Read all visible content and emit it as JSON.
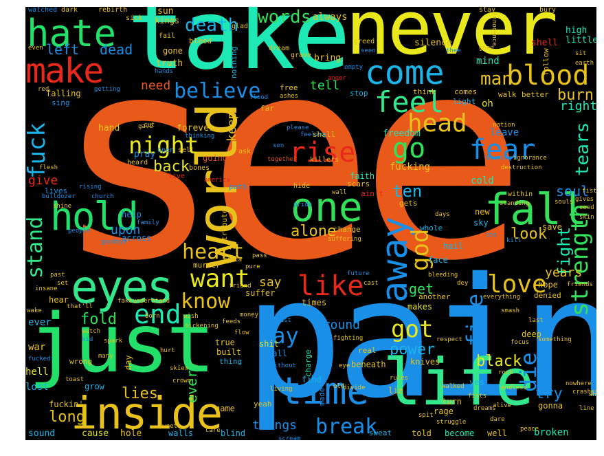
{
  "words": [
    {
      "text": "see",
      "color": "#e8591a"
    },
    {
      "text": "pain",
      "color": "#1a8fe8"
    },
    {
      "text": "take",
      "color": "#1ee8b4"
    },
    {
      "text": "never",
      "color": "#e8e81a"
    },
    {
      "text": "just",
      "color": "#22e06a"
    },
    {
      "text": "life",
      "color": "#33e88c"
    },
    {
      "text": "inside",
      "color": "#e8c21a"
    },
    {
      "text": "hate",
      "color": "#22e06a"
    },
    {
      "text": "make",
      "color": "#e8281a"
    },
    {
      "text": "world",
      "color": "#e8c21a"
    },
    {
      "text": "hold",
      "color": "#22e06a"
    },
    {
      "text": "eyes",
      "color": "#33e88c"
    },
    {
      "text": "one",
      "color": "#33e05a"
    },
    {
      "text": "fall",
      "color": "#33e05a"
    },
    {
      "text": "away",
      "color": "#1a8fe8"
    },
    {
      "text": "time",
      "color": "#1a8fe8"
    },
    {
      "text": "come",
      "color": "#1ab4e8"
    },
    {
      "text": "blood",
      "color": "#e8c21a"
    },
    {
      "text": "feel",
      "color": "#33e88c"
    },
    {
      "text": "fear",
      "color": "#1a8fe8"
    },
    {
      "text": "strength",
      "color": "#33e05a"
    },
    {
      "text": "night",
      "color": "#e8e81a"
    },
    {
      "text": "rise",
      "color": "#e8281a"
    },
    {
      "text": "go",
      "color": "#33e05a"
    },
    {
      "text": "head",
      "color": "#e8c21a"
    },
    {
      "text": "end",
      "color": "#1ee8b4"
    },
    {
      "text": "want",
      "color": "#e8e81a"
    },
    {
      "text": "know",
      "color": "#e8c21a"
    },
    {
      "text": "like",
      "color": "#e8281a"
    },
    {
      "text": "love",
      "color": "#e8c21a"
    },
    {
      "text": "god",
      "color": "#e8c21a"
    },
    {
      "text": "fire",
      "color": "#1a8fe8"
    },
    {
      "text": "die",
      "color": "#1a8fe8"
    },
    {
      "text": "got",
      "color": "#e8e81a"
    },
    {
      "text": "way",
      "color": "#1a8fe8"
    },
    {
      "text": "heart",
      "color": "#e8c21a"
    },
    {
      "text": "break",
      "color": "#1a8fe8"
    },
    {
      "text": "fuck",
      "color": "#1ab4e8"
    },
    {
      "text": "stand",
      "color": "#33e88c"
    },
    {
      "text": "death",
      "color": "#1ab4e8"
    },
    {
      "text": "believe",
      "color": "#1a8fe8"
    },
    {
      "text": "words",
      "color": "#33e05a"
    },
    {
      "text": "fight",
      "color": "#1ee8b4"
    },
    {
      "text": "tears",
      "color": "#1ee8b4"
    },
    {
      "text": "man",
      "color": "#e8c21a"
    },
    {
      "text": "burn",
      "color": "#e8c21a"
    },
    {
      "text": "right",
      "color": "#1ee8b4"
    },
    {
      "text": "soul",
      "color": "#1a8fe8"
    },
    {
      "text": "ten",
      "color": "#1ab4e8"
    },
    {
      "text": "alone",
      "color": "#e8c21a"
    },
    {
      "text": "look",
      "color": "#e8c21a"
    },
    {
      "text": "back",
      "color": "#e8e81a"
    },
    {
      "text": "dead",
      "color": "#1a8fe8"
    },
    {
      "text": "left",
      "color": "#1a8fe8"
    },
    {
      "text": "fold",
      "color": "#33e05a"
    },
    {
      "text": "power",
      "color": "#1ab4e8"
    },
    {
      "text": "black",
      "color": "#e8e81a"
    },
    {
      "text": "try",
      "color": "#1a8fe8"
    },
    {
      "text": "long",
      "color": "#e8c21a"
    },
    {
      "text": "lies",
      "color": "#e8c21a"
    },
    {
      "text": "every",
      "color": "#33e05a"
    },
    {
      "text": "things",
      "color": "#1a8fe8"
    },
    {
      "text": "say",
      "color": "#e8c21a"
    },
    {
      "text": "get",
      "color": "#33e05a"
    },
    {
      "text": "years",
      "color": "#e8c21a"
    },
    {
      "text": "around",
      "color": "#1a8fe8"
    },
    {
      "text": "give",
      "color": "#e8281a"
    },
    {
      "text": "upon",
      "color": "#1a8fe8"
    },
    {
      "text": "keep",
      "color": "#e8c21a"
    },
    {
      "text": "tell",
      "color": "#33e05a"
    },
    {
      "text": "need",
      "color": "#e8591a"
    },
    {
      "text": "always",
      "color": "#e8c21a"
    },
    {
      "text": "sun",
      "color": "#e8c21a"
    },
    {
      "text": "kings",
      "color": "#e8c21a"
    },
    {
      "text": "truth",
      "color": "#e8c21a"
    },
    {
      "text": "gone",
      "color": "#e8c21a"
    },
    {
      "text": "bleed",
      "color": "#e8c21a"
    },
    {
      "text": "forever",
      "color": "#e8c21a"
    },
    {
      "text": "hand",
      "color": "#e8c21a"
    },
    {
      "text": "pray",
      "color": "#1a8fe8"
    },
    {
      "text": "going",
      "color": "#e8591a"
    },
    {
      "text": "faith",
      "color": "#1ee8b4"
    },
    {
      "text": "fucking",
      "color": "#e8c21a"
    },
    {
      "text": "freedom",
      "color": "#1ee8b4"
    },
    {
      "text": "cold",
      "color": "#1ee8b4"
    },
    {
      "text": "leave",
      "color": "#1a8fe8"
    },
    {
      "text": "mind",
      "color": "#1ee8b4"
    },
    {
      "text": "high",
      "color": "#1ee8b4"
    },
    {
      "text": "little",
      "color": "#1ee8b4"
    },
    {
      "text": "silence",
      "color": "#e8c21a"
    },
    {
      "text": "shell",
      "color": "#e8281a"
    },
    {
      "text": "bring",
      "color": "#e8c21a"
    },
    {
      "text": "oh",
      "color": "#e8e81a"
    },
    {
      "text": "hell",
      "color": "#e8e81a"
    },
    {
      "text": "lost",
      "color": "#1ab4e8"
    },
    {
      "text": "war",
      "color": "#e8c21a"
    },
    {
      "text": "ever",
      "color": "#1ab4e8"
    },
    {
      "text": "sound",
      "color": "#1ab4e8"
    },
    {
      "text": "cause",
      "color": "#e8e81a"
    },
    {
      "text": "hole",
      "color": "#e8c21a"
    },
    {
      "text": "walls",
      "color": "#1ab4e8"
    },
    {
      "text": "blind",
      "color": "#1ab4e8"
    },
    {
      "text": "told",
      "color": "#e8c21a"
    },
    {
      "text": "become",
      "color": "#1ee8b4"
    },
    {
      "text": "well",
      "color": "#e8c21a"
    },
    {
      "text": "broken",
      "color": "#1ee8b4"
    },
    {
      "text": "sweat",
      "color": "#1ab4e8"
    },
    {
      "text": "suffer",
      "color": "#e8c21a"
    },
    {
      "text": "makes",
      "color": "#e8e81a"
    },
    {
      "text": "another",
      "color": "#e8c21a"
    },
    {
      "text": "face",
      "color": "#1ab4e8"
    },
    {
      "text": "hope",
      "color": "#e8c21a"
    },
    {
      "text": "denied",
      "color": "#e8c21a"
    },
    {
      "text": "deep",
      "color": "#e8c21a"
    },
    {
      "text": "knives",
      "color": "#e8c21a"
    },
    {
      "text": "gonna",
      "color": "#e8c21a"
    },
    {
      "text": "yes",
      "color": "#1ab4e8"
    },
    {
      "text": "turn",
      "color": "#e8c21a"
    },
    {
      "text": "rage",
      "color": "#e8c21a"
    },
    {
      "text": "shit",
      "color": "#e8e81a"
    },
    {
      "text": "call",
      "color": "#1a8fe8"
    },
    {
      "text": "built",
      "color": "#e8c21a"
    },
    {
      "text": "thing",
      "color": "#1ab4e8"
    },
    {
      "text": "true",
      "color": "#e8c21a"
    },
    {
      "text": "game",
      "color": "#e8c21a"
    },
    {
      "text": "wrong",
      "color": "#e8c21a"
    },
    {
      "text": "grow",
      "color": "#1ab4e8"
    },
    {
      "text": "times",
      "color": "#e8c21a"
    },
    {
      "text": "walk",
      "color": "#e8c21a"
    },
    {
      "text": "free",
      "color": "#e8c21a"
    },
    {
      "text": "far",
      "color": "#e8c21a"
    },
    {
      "text": "new",
      "color": "#e8c21a"
    },
    {
      "text": "sky",
      "color": "#1ab4e8"
    },
    {
      "text": "save",
      "color": "#e8c21a"
    },
    {
      "text": "hail",
      "color": "#1ab4e8"
    },
    {
      "text": "help",
      "color": "#1a8fe8"
    },
    {
      "text": "across",
      "color": "#1a8fe8"
    },
    {
      "text": "falling",
      "color": "#e8c21a"
    },
    {
      "text": "sing",
      "color": "#1a8fe8"
    },
    {
      "text": "lives",
      "color": "#1a8fe8"
    },
    {
      "text": "murder",
      "color": "#e8c21a"
    },
    {
      "text": "comes",
      "color": "#e8c21a"
    },
    {
      "text": "better",
      "color": "#e8c21a"
    },
    {
      "text": "light",
      "color": "#1ab4e8"
    },
    {
      "text": "think",
      "color": "#e8c21a"
    },
    {
      "text": "shall",
      "color": "#e8c21a"
    },
    {
      "text": "scars",
      "color": "#e8c21a"
    },
    {
      "text": "gets",
      "color": "#e8c21a"
    },
    {
      "text": "change",
      "color": "#e8c21a"
    },
    {
      "text": "whole",
      "color": "#1ab4e8"
    },
    {
      "text": "nothing",
      "color": "#1ab4e8"
    },
    {
      "text": "hear",
      "color": "#e8c21a"
    },
    {
      "text": "stop",
      "color": "#1ab4e8"
    },
    {
      "text": "ain't",
      "color": "#e8281a"
    },
    {
      "text": "follow",
      "color": "#e8c21a"
    },
    {
      "text": "tribute",
      "color": "#e8c21a"
    },
    {
      "text": "path",
      "color": "#1a8fe8"
    },
    {
      "text": "beneath",
      "color": "#e8c21a"
    },
    {
      "text": "find",
      "color": "#1ab4e8"
    },
    {
      "text": "real",
      "color": "#e8c21a"
    },
    {
      "text": "made",
      "color": "#1a8fe8"
    },
    {
      "text": "charge",
      "color": "#1ee8b4"
    },
    {
      "text": "yeah",
      "color": "#e8c21a"
    },
    {
      "text": "lie",
      "color": "#e8c21a"
    },
    {
      "text": "fuckin'",
      "color": "#e8c21a"
    },
    {
      "text": "day",
      "color": "#e8c21a"
    },
    {
      "text": "watched",
      "color": "#1a8fe8"
    },
    {
      "text": "dark",
      "color": "#e8c21a"
    },
    {
      "text": "rebirth",
      "color": "#e8c21a"
    },
    {
      "text": "sick",
      "color": "#e8c21a"
    },
    {
      "text": "stay",
      "color": "#e8c21a"
    },
    {
      "text": "bury",
      "color": "#e8c21a"
    },
    {
      "text": "glad",
      "color": "#e8c21a"
    },
    {
      "text": "fail",
      "color": "#e8c21a"
    },
    {
      "text": "greed",
      "color": "#e8c21a"
    },
    {
      "text": "innocence",
      "color": "#e8c21a"
    },
    {
      "text": "even",
      "color": "#e8c21a"
    },
    {
      "text": "dream",
      "color": "#e8c21a"
    },
    {
      "text": "grave",
      "color": "#e8c21a"
    },
    {
      "text": "hands",
      "color": "#1a8fe8"
    },
    {
      "text": "seen",
      "color": "#1a8fe8"
    },
    {
      "text": "thee",
      "color": "#1a8fe8"
    },
    {
      "text": "good",
      "color": "#e8c21a"
    },
    {
      "text": "sit",
      "color": "#e8c21a"
    },
    {
      "text": "earth",
      "color": "#e8c21a"
    },
    {
      "text": "empty",
      "color": "#1a8fe8"
    },
    {
      "text": "anger",
      "color": "#e8281a"
    },
    {
      "text": "red",
      "color": "#e8c21a"
    },
    {
      "text": "getting",
      "color": "#1a8fe8"
    },
    {
      "text": "flood",
      "color": "#1a8fe8"
    },
    {
      "text": "ashes",
      "color": "#e8c21a"
    },
    {
      "text": "nation",
      "color": "#e8c21a"
    },
    {
      "text": "please",
      "color": "#1a8fe8"
    },
    {
      "text": "feeling",
      "color": "#1a8fe8"
    },
    {
      "text": "cut",
      "color": "#e8c21a"
    },
    {
      "text": "gave",
      "color": "#e8c21a"
    },
    {
      "text": "thinking",
      "color": "#1a8fe8"
    },
    {
      "text": "son",
      "color": "#1a8fe8"
    },
    {
      "text": "bones",
      "color": "#e8c21a"
    },
    {
      "text": "ask",
      "color": "#e8c21a"
    },
    {
      "text": "together",
      "color": "#e8591a"
    },
    {
      "text": "killers",
      "color": "#e8c21a"
    },
    {
      "text": "open",
      "color": "#1a8fe8"
    },
    {
      "text": "sell",
      "color": "#e8c21a"
    },
    {
      "text": "burning",
      "color": "#1a8fe8"
    },
    {
      "text": "ignorance",
      "color": "#e8c21a"
    },
    {
      "text": "flesh",
      "color": "#e8c21a"
    },
    {
      "text": "heard",
      "color": "#e8c21a"
    },
    {
      "text": "live",
      "color": "#e8281a"
    },
    {
      "text": "america",
      "color": "#e8281a"
    },
    {
      "text": "rising",
      "color": "#1a8fe8"
    },
    {
      "text": "church",
      "color": "#1a8fe8"
    },
    {
      "text": "bulldozer",
      "color": "#1a8fe8"
    },
    {
      "text": "family",
      "color": "#1a8fe8"
    },
    {
      "text": "people",
      "color": "#1a8fe8"
    },
    {
      "text": "goodbye",
      "color": "#1a8fe8"
    },
    {
      "text": "hide",
      "color": "#e8c21a"
    },
    {
      "text": "wall",
      "color": "#e8c21a"
    },
    {
      "text": "pride",
      "color": "#1a8fe8"
    },
    {
      "text": "days",
      "color": "#e8c21a"
    },
    {
      "text": "within",
      "color": "#e8c21a"
    },
    {
      "text": "fist",
      "color": "#e8c21a"
    },
    {
      "text": "gives",
      "color": "#e8c21a"
    },
    {
      "text": "seed",
      "color": "#e8c21a"
    },
    {
      "text": "souls",
      "color": "#e8c21a"
    },
    {
      "text": "skin",
      "color": "#e8c21a"
    },
    {
      "text": "standing",
      "color": "#e8c21a"
    },
    {
      "text": "cos",
      "color": "#1a8fe8"
    },
    {
      "text": "kill",
      "color": "#1a8fe8"
    },
    {
      "text": "suffering",
      "color": "#e8c21a"
    },
    {
      "text": "pass",
      "color": "#e8c21a"
    },
    {
      "text": "pure",
      "color": "#e8c21a"
    },
    {
      "text": "gotta",
      "color": "#e8c21a"
    },
    {
      "text": "past",
      "color": "#e8c21a"
    },
    {
      "text": "set",
      "color": "#e8c21a"
    },
    {
      "text": "insane",
      "color": "#e8c21a"
    },
    {
      "text": "that'll",
      "color": "#e8c21a"
    },
    {
      "text": "friend",
      "color": "#e8c21a"
    },
    {
      "text": "fake",
      "color": "#e8c21a"
    },
    {
      "text": "understand",
      "color": "#e8c21a"
    },
    {
      "text": "future",
      "color": "#1a8fe8"
    },
    {
      "text": "cast",
      "color": "#e8c21a"
    },
    {
      "text": "bleeding",
      "color": "#e8c21a"
    },
    {
      "text": "dey",
      "color": "#e8c21a"
    },
    {
      "text": "friends",
      "color": "#e8c21a"
    },
    {
      "text": "everything",
      "color": "#e8c21a"
    },
    {
      "text": "wake",
      "color": "#e8c21a"
    },
    {
      "text": "born",
      "color": "#e8c21a"
    },
    {
      "text": "wish",
      "color": "#e8c21a"
    },
    {
      "text": "money",
      "color": "#e8c21a"
    },
    {
      "text": "feeds",
      "color": "#e8c21a"
    },
    {
      "text": "trust",
      "color": "#1a8fe8"
    },
    {
      "text": "smash",
      "color": "#e8c21a"
    },
    {
      "text": "last",
      "color": "#e8c21a"
    },
    {
      "text": "watch",
      "color": "#e8c21a"
    },
    {
      "text": "kid",
      "color": "#1a8fe8"
    },
    {
      "text": "spark",
      "color": "#e8c21a"
    },
    {
      "text": "sickening",
      "color": "#e8c21a"
    },
    {
      "text": "flow",
      "color": "#e8c21a"
    },
    {
      "text": "respect",
      "color": "#e8c21a"
    },
    {
      "text": "focus",
      "color": "#e8c21a"
    },
    {
      "text": "something",
      "color": "#e8c21a"
    },
    {
      "text": "fucked",
      "color": "#1a8fe8"
    },
    {
      "text": "many",
      "color": "#e8c21a"
    },
    {
      "text": "hurt",
      "color": "#e8c21a"
    },
    {
      "text": "without",
      "color": "#1a8fe8"
    },
    {
      "text": "eye",
      "color": "#e8c21a"
    },
    {
      "text": "fighting",
      "color": "#e8c21a"
    },
    {
      "text": "rules",
      "color": "#e8c21a"
    },
    {
      "text": "rock",
      "color": "#e8c21a"
    },
    {
      "text": "skies",
      "color": "#e8c21a"
    },
    {
      "text": "crown",
      "color": "#e8c21a"
    },
    {
      "text": "toast",
      "color": "#e8c21a"
    },
    {
      "text": "living",
      "color": "#e8c21a"
    },
    {
      "text": "old",
      "color": "#e8c21a"
    },
    {
      "text": "divide",
      "color": "#e8c21a"
    },
    {
      "text": "walked",
      "color": "#e8c21a"
    },
    {
      "text": "endless",
      "color": "#e8c21a"
    },
    {
      "text": "nowhere",
      "color": "#e8c21a"
    },
    {
      "text": "white",
      "color": "#e8c21a"
    },
    {
      "text": "crashes",
      "color": "#e8c21a"
    },
    {
      "text": "line",
      "color": "#e8c21a"
    },
    {
      "text": "fists",
      "color": "#e8c21a"
    },
    {
      "text": "alive",
      "color": "#e8c21a"
    },
    {
      "text": "dreams",
      "color": "#e8c21a"
    },
    {
      "text": "spit",
      "color": "#e8c21a"
    },
    {
      "text": "struggle",
      "color": "#e8c21a"
    },
    {
      "text": "dare",
      "color": "#e8c21a"
    },
    {
      "text": "scream",
      "color": "#1a8fe8"
    },
    {
      "text": "peace",
      "color": "#e8c21a"
    },
    {
      "text": "sweet",
      "color": "#e8c21a"
    },
    {
      "text": "care",
      "color": "#e8c21a"
    },
    {
      "text": "shine",
      "color": "#e8c21a"
    },
    {
      "text": "destruction",
      "color": "#e8c21a"
    }
  ]
}
